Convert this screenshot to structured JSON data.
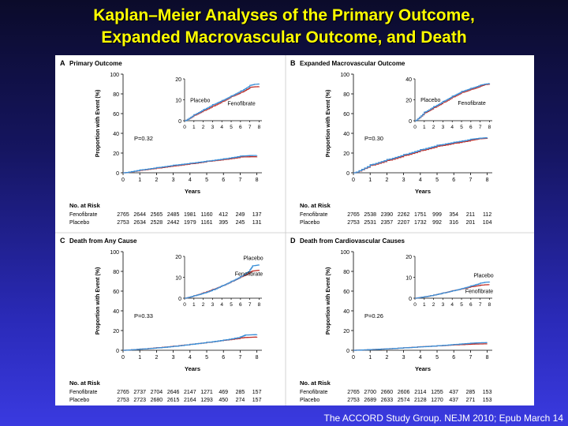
{
  "slide": {
    "title_line1": "Kaplan–Meier Analyses of the Primary Outcome,",
    "title_line2": "Expanded Macrovascular Outcome, and Death",
    "citation": "The ACCORD Study Group. NEJM 2010; Epub March 14"
  },
  "colors": {
    "fenofibrate": "#c0302a",
    "placebo": "#3a8fd8",
    "title": "#ffff00"
  },
  "chart_data": [
    {
      "type": "line",
      "letter": "A",
      "title": "Primary Outcome",
      "xlabel": "Years",
      "ylabel": "Proportion with Event (%)",
      "xlim": [
        0,
        8.3
      ],
      "ylim": [
        0,
        100
      ],
      "xticks": [
        0,
        1,
        2,
        3,
        4,
        5,
        6,
        7,
        8
      ],
      "yticks": [
        0,
        20,
        40,
        60,
        80,
        100
      ],
      "pvalue": "P=0.32",
      "series": [
        {
          "name": "Fenofibrate",
          "x": [
            0,
            1,
            2,
            3,
            4,
            5,
            6,
            7,
            7.5,
            8
          ],
          "values": [
            0,
            2.6,
            4.8,
            7.0,
            9.2,
            11.6,
            13.5,
            16,
            16.2,
            16.3
          ]
        },
        {
          "name": "Placebo",
          "x": [
            0,
            1,
            2,
            3,
            4,
            5,
            6,
            7,
            7.5,
            8
          ],
          "values": [
            0,
            2.9,
            5.3,
            7.7,
            9.7,
            11.9,
            14.2,
            16.9,
            17.4,
            17.6
          ]
        }
      ],
      "inset": {
        "ylim": [
          0,
          20
        ],
        "yticks": [
          0,
          10,
          20
        ],
        "xticks": [
          0,
          1,
          2,
          3,
          4,
          5,
          6,
          7,
          8
        ],
        "labels": [
          "Placebo",
          "Fenofibrate"
        ]
      },
      "risk": {
        "heading": "No. at Risk",
        "rows": [
          {
            "name": "Fenofibrate",
            "values": [
              "2765",
              "2644",
              "2565",
              "2485",
              "1981",
              "1160",
              "412",
              "249",
              "137"
            ]
          },
          {
            "name": "Placebo",
            "values": [
              "2753",
              "2634",
              "2528",
              "2442",
              "1979",
              "1161",
              "395",
              "245",
              "131"
            ]
          }
        ]
      }
    },
    {
      "type": "line",
      "letter": "B",
      "title": "Expanded Macrovascular Outcome",
      "xlabel": "Years",
      "ylabel": "Proportion with Event (%)",
      "xlim": [
        0,
        8.3
      ],
      "ylim": [
        0,
        100
      ],
      "xticks": [
        0,
        1,
        2,
        3,
        4,
        5,
        6,
        7,
        8
      ],
      "yticks": [
        0,
        20,
        40,
        60,
        80,
        100
      ],
      "pvalue": "P=0.30",
      "series": [
        {
          "name": "Fenofibrate",
          "x": [
            0,
            1,
            2,
            3,
            4,
            5,
            6,
            7,
            7.5,
            8
          ],
          "values": [
            0,
            7.5,
            12.5,
            17.5,
            22.5,
            27,
            30,
            33,
            34.5,
            35
          ]
        },
        {
          "name": "Placebo",
          "x": [
            0,
            1,
            2,
            3,
            4,
            5,
            6,
            7,
            7.5,
            8
          ],
          "values": [
            0,
            8.2,
            13.5,
            18.5,
            23.5,
            28,
            31,
            34,
            35,
            35.6
          ]
        }
      ],
      "inset": {
        "ylim": [
          0,
          40
        ],
        "yticks": [
          0,
          20,
          40
        ],
        "xticks": [
          0,
          1,
          2,
          3,
          4,
          5,
          6,
          7,
          8
        ],
        "labels": [
          "Placebo",
          "Fenofibrate"
        ]
      },
      "risk": {
        "heading": "No. at Risk",
        "rows": [
          {
            "name": "Fenofibrate",
            "values": [
              "2765",
              "2538",
              "2390",
              "2262",
              "1751",
              "999",
              "354",
              "211",
              "112"
            ]
          },
          {
            "name": "Placebo",
            "values": [
              "2753",
              "2531",
              "2357",
              "2207",
              "1732",
              "992",
              "316",
              "201",
              "104"
            ]
          }
        ]
      }
    },
    {
      "type": "line",
      "letter": "C",
      "title": "Death from Any Cause",
      "xlabel": "Years",
      "ylabel": "Proportion with Event (%)",
      "xlim": [
        0,
        8.3
      ],
      "ylim": [
        0,
        100
      ],
      "xticks": [
        0,
        1,
        2,
        3,
        4,
        5,
        6,
        7,
        8
      ],
      "yticks": [
        0,
        20,
        40,
        60,
        80,
        100
      ],
      "pvalue": "P=0.33",
      "series": [
        {
          "name": "Fenofibrate",
          "x": [
            0,
            1,
            2,
            3,
            4,
            5,
            6,
            7,
            7.3,
            8
          ],
          "values": [
            0,
            1.2,
            2.6,
            4.2,
            6.0,
            8.0,
            10.2,
            12.4,
            13,
            13.5
          ]
        },
        {
          "name": "Placebo",
          "x": [
            0,
            1,
            2,
            3,
            4,
            5,
            6,
            7,
            7.3,
            8
          ],
          "values": [
            0,
            1.2,
            2.4,
            4.0,
            6.0,
            8.1,
            10.4,
            13.5,
            15.5,
            16
          ]
        }
      ],
      "inset": {
        "ylim": [
          0,
          20
        ],
        "yticks": [
          0,
          10,
          20
        ],
        "xticks": [
          0,
          1,
          2,
          3,
          4,
          5,
          6,
          7,
          8
        ],
        "labels": [
          "Placebo",
          "Fenofibrate"
        ]
      },
      "risk": {
        "heading": "No. at Risk",
        "rows": [
          {
            "name": "Fenofibrate",
            "values": [
              "2765",
              "2737",
              "2704",
              "2646",
              "2147",
              "1271",
              "469",
              "285",
              "157"
            ]
          },
          {
            "name": "Placebo",
            "values": [
              "2753",
              "2723",
              "2680",
              "2615",
              "2164",
              "1293",
              "450",
              "274",
              "157"
            ]
          }
        ]
      }
    },
    {
      "type": "line",
      "letter": "D",
      "title": "Death from Cardiovascular Causes",
      "xlabel": "Years",
      "ylabel": "Proportion with Event (%)",
      "xlim": [
        0,
        8.3
      ],
      "ylim": [
        0,
        100
      ],
      "xticks": [
        0,
        1,
        2,
        3,
        4,
        5,
        6,
        7,
        8
      ],
      "yticks": [
        0,
        20,
        40,
        60,
        80,
        100
      ],
      "pvalue": "P=0.26",
      "series": [
        {
          "name": "Fenofibrate",
          "x": [
            0,
            1,
            2,
            3,
            4,
            5,
            6,
            7,
            7.5,
            8
          ],
          "values": [
            0,
            0.7,
            1.5,
            2.5,
            3.6,
            4.5,
            5.5,
            6.2,
            6.4,
            6.5
          ]
        },
        {
          "name": "Placebo",
          "x": [
            0,
            1,
            2,
            3,
            4,
            5,
            6,
            7,
            7.5,
            8
          ],
          "values": [
            0,
            0.7,
            1.5,
            2.5,
            3.5,
            4.6,
            5.9,
            7.2,
            7.6,
            7.8
          ]
        }
      ],
      "inset": {
        "ylim": [
          0,
          20
        ],
        "yticks": [
          0,
          10,
          20
        ],
        "xticks": [
          0,
          1,
          2,
          3,
          4,
          5,
          6,
          7,
          8
        ],
        "labels": [
          "Placebo",
          "Fenofibrate"
        ]
      },
      "risk": {
        "heading": "No. at Risk",
        "rows": [
          {
            "name": "Fenofibrate",
            "values": [
              "2765",
              "2700",
              "2660",
              "2606",
              "2114",
              "1255",
              "437",
              "285",
              "153"
            ]
          },
          {
            "name": "Placebo",
            "values": [
              "2753",
              "2689",
              "2633",
              "2574",
              "2128",
              "1270",
              "437",
              "271",
              "153"
            ]
          }
        ]
      }
    }
  ]
}
